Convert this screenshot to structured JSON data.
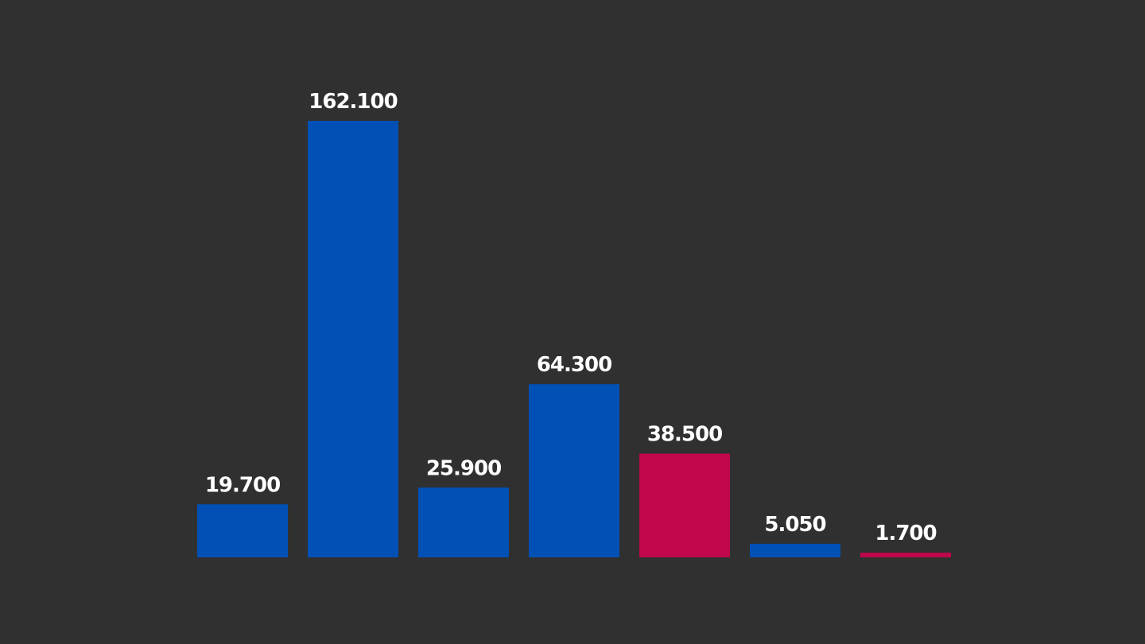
{
  "chart_data": {
    "type": "bar",
    "values": [
      19700,
      162100,
      25900,
      64300,
      38500,
      5050,
      1700
    ],
    "value_labels": [
      "19.700",
      "162.100",
      "25.900",
      "64.300",
      "38.500",
      "5.050",
      "1.700"
    ],
    "colors": [
      "#0050b5",
      "#0050b5",
      "#0050b5",
      "#0050b5",
      "#c0074b",
      "#0050b5",
      "#c0074b"
    ]
  }
}
